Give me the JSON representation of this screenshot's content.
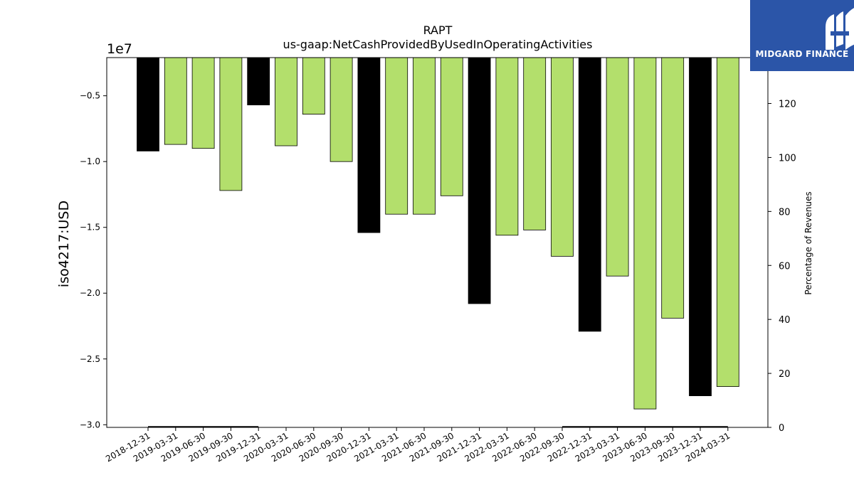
{
  "logo": {
    "text": "MIDGARD FINANCE"
  },
  "chart_data": {
    "type": "bar",
    "title": "RAPT",
    "subtitle": "us-gaap:NetCashProvidedByUsedInOperatingActivities",
    "ylabel": "iso4217:USD",
    "y_offset_label": "1e7",
    "y2label": "Percentage of Revenues",
    "ylim": [
      -3.02,
      -0.21
    ],
    "y2lim": [
      0,
      137
    ],
    "yticks": [
      -0.5,
      -1.0,
      -1.5,
      -2.0,
      -2.5,
      -3.0
    ],
    "ytick_labels": [
      "−0.5",
      "−1.0",
      "−1.5",
      "−2.0",
      "−2.5",
      "−3.0"
    ],
    "y2ticks": [
      0,
      20,
      40,
      60,
      80,
      100,
      120
    ],
    "y2tick_labels": [
      "0",
      "20",
      "40",
      "60",
      "80",
      "100",
      "120"
    ],
    "colors": {
      "annual": "#000000",
      "quarterly": "#b3df6c"
    },
    "categories": [
      "2018-12-31",
      "2019-03-31",
      "2019-06-30",
      "2019-09-30",
      "2019-12-31",
      "2020-03-31",
      "2020-06-30",
      "2020-09-30",
      "2020-12-31",
      "2021-03-31",
      "2021-06-30",
      "2021-09-30",
      "2021-12-31",
      "2022-03-31",
      "2022-06-30",
      "2022-09-30",
      "2022-12-31",
      "2023-03-31",
      "2023-06-30",
      "2023-09-30",
      "2023-12-31",
      "2024-03-31"
    ],
    "values": [
      -0.92,
      -0.87,
      -0.9,
      -1.22,
      -0.57,
      -0.88,
      -0.64,
      -1.0,
      -1.54,
      -1.4,
      -1.4,
      -1.26,
      -2.08,
      -1.56,
      -1.52,
      -1.72,
      -2.29,
      -1.87,
      -2.88,
      -2.19,
      -2.78,
      -2.71
    ],
    "annual": [
      true,
      false,
      false,
      false,
      true,
      false,
      false,
      false,
      true,
      false,
      false,
      false,
      true,
      false,
      false,
      false,
      true,
      false,
      false,
      false,
      true,
      false
    ],
    "secondary_series": [
      {
        "values": [
          0,
          0,
          0,
          0,
          0,
          null,
          null,
          null,
          null,
          null,
          null,
          null,
          null,
          null,
          null,
          0,
          0,
          0,
          0,
          0,
          0,
          0
        ]
      }
    ]
  }
}
